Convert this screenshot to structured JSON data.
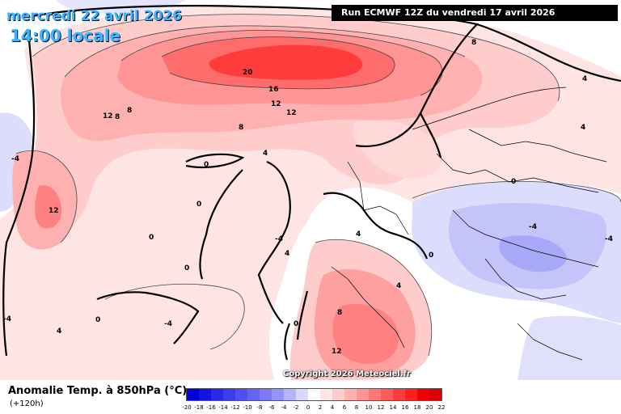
{
  "header": {
    "valid_date": "mercredi 22 avril 2026",
    "valid_time": "14:00 locale",
    "run_info": "Run ECMWF 12Z du vendredi 17 avril 2026"
  },
  "footer": {
    "copyright": "Copyright 2026 Meteociel.fr",
    "legend_title": "Anomalie Temp. à 850hPa (°C)",
    "legend_subtitle": "(+120h)"
  },
  "legend_scale": {
    "labels": [
      "-20",
      "-18",
      "-16",
      "-14",
      "-12",
      "-10",
      "-8",
      "-6",
      "-4",
      "-2",
      "0",
      "2",
      "4",
      "6",
      "8",
      "10",
      "12",
      "14",
      "16",
      "18",
      "20",
      "22"
    ],
    "colors": [
      "#0000d8",
      "#1414e0",
      "#2828e8",
      "#3c3cee",
      "#5050f2",
      "#6464f4",
      "#7c7cf6",
      "#9494f8",
      "#b4b4fa",
      "#d8d8fc",
      "#ffffff",
      "#ffe6e6",
      "#ffcccc",
      "#ffb0b0",
      "#ff9494",
      "#ff7878",
      "#ff5a5a",
      "#ff3c3c",
      "#ff1e1e",
      "#f00000",
      "#d80000"
    ]
  },
  "contour_labels": [
    "20",
    "16",
    "12",
    "12",
    "8",
    "12",
    "8",
    "8",
    "12",
    "4",
    "0",
    "0",
    "0",
    "0",
    "0",
    "-4",
    "-4",
    "4",
    "4",
    "4",
    "8",
    "12",
    "4",
    "0",
    "-4",
    "-4",
    "-4",
    "4",
    "-4",
    "0",
    "0",
    "4",
    "8"
  ]
}
